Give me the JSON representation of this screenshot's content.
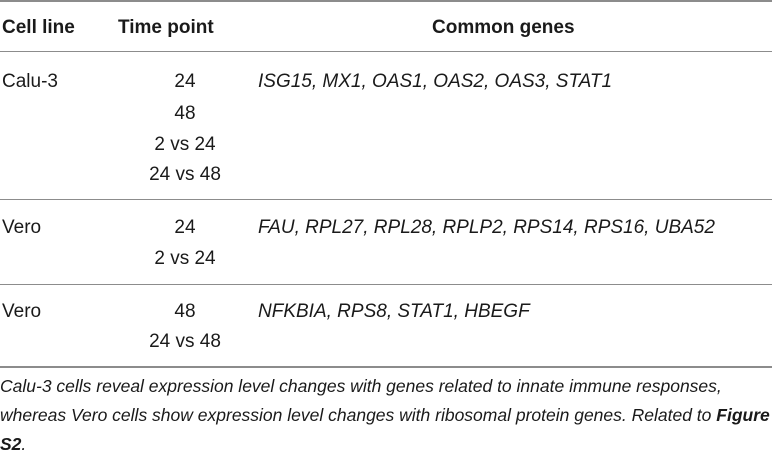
{
  "table": {
    "headers": [
      "Cell line",
      "Time point",
      "Common genes"
    ],
    "rows": [
      {
        "cell_line": "Calu-3",
        "time_points": [
          "24",
          "48",
          "2 vs 24",
          "24 vs 48"
        ],
        "genes": "ISG15, MX1, OAS1, OAS2, OAS3, STAT1"
      },
      {
        "cell_line": "Vero",
        "time_points": [
          "24",
          "2 vs 24"
        ],
        "genes": "FAU, RPL27, RPL28, RPLP2, RPS14, RPS16, UBA52"
      },
      {
        "cell_line": "Vero",
        "time_points": [
          "48",
          "24 vs 48"
        ],
        "genes": "NFKBIA, RPS8, STAT1, HBEGF"
      }
    ]
  },
  "caption": {
    "text": "Calu-3 cells reveal expression level changes with genes related to innate immune responses, whereas Vero cells show expression level changes with ribosomal protein genes. Related to ",
    "ref": "Figure S2",
    "end": "."
  }
}
